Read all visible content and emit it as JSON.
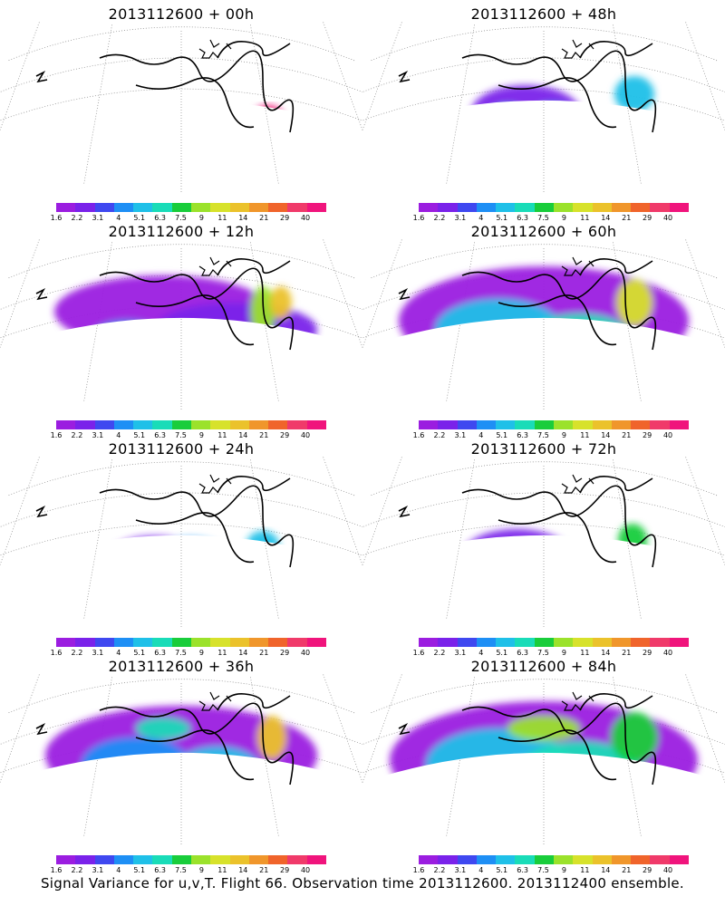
{
  "panels": [
    {
      "title": "2013112600 + 00h",
      "level": 0
    },
    {
      "title": "2013112600 + 48h",
      "level": 4
    },
    {
      "title": "2013112600 + 12h",
      "level": 1
    },
    {
      "title": "2013112600 + 60h",
      "level": 5
    },
    {
      "title": "2013112600 + 24h",
      "level": 2
    },
    {
      "title": "2013112600 + 72h",
      "level": 6
    },
    {
      "title": "2013112600 + 36h",
      "level": 3
    },
    {
      "title": "2013112600 + 84h",
      "level": 7
    }
  ],
  "colorbar": {
    "colors": [
      "#9b1de0",
      "#7a22ea",
      "#3f48f0",
      "#1e8ff5",
      "#1fc0e8",
      "#19dcb8",
      "#19cd3b",
      "#9be22b",
      "#d7e22b",
      "#ebc22b",
      "#f0962b",
      "#f0642b",
      "#f03a6a",
      "#f0147c"
    ],
    "labels": [
      "1.6",
      "2.2",
      "3.1",
      "4",
      "5.1",
      "6.3",
      "7.5",
      "9",
      "11",
      "14",
      "21",
      "29",
      "40"
    ]
  },
  "footer": "Signal Variance for u,v,T. Flight 66. Observation time 2013112600. 2013112400 ensemble."
}
